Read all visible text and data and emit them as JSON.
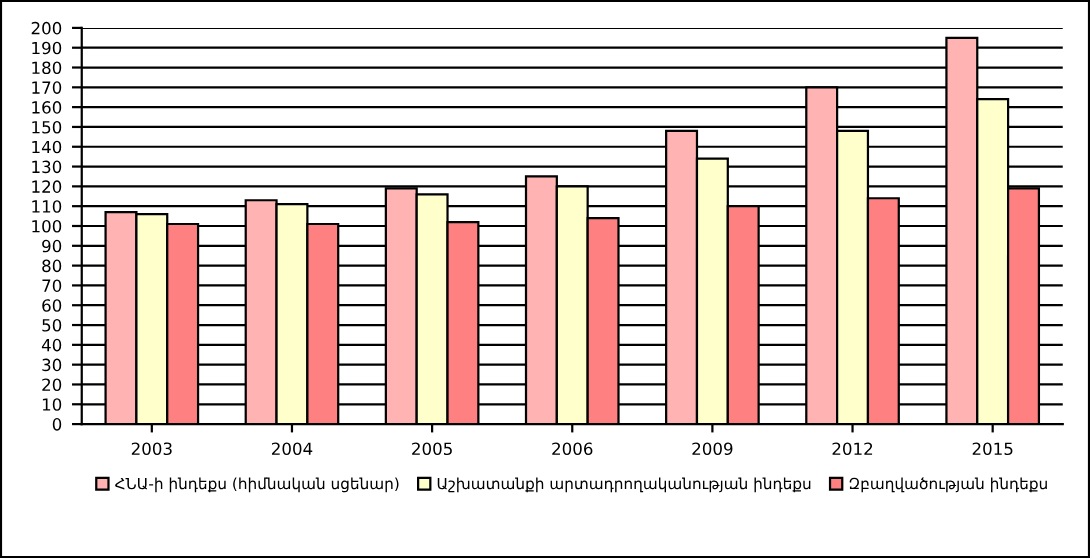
{
  "chart_data": {
    "type": "bar",
    "categories": [
      "2003",
      "2004",
      "2005",
      "2006",
      "2009",
      "2012",
      "2015"
    ],
    "series": [
      {
        "name": "ՀՆԱ-ի ինդեքս (հիմնական սցենար)",
        "color": "#ffb3b3",
        "values": [
          107,
          113,
          119,
          125,
          148,
          170,
          195
        ]
      },
      {
        "name": "Աշխատանքի արտադրողականության ինդեքս",
        "color": "#ffffcc",
        "values": [
          106,
          111,
          116,
          120,
          134,
          148,
          164
        ]
      },
      {
        "name": "Զբաղվածության ինդեքս",
        "color": "#ff8080",
        "values": [
          101,
          101,
          102,
          104,
          110,
          114,
          119
        ]
      }
    ],
    "ylim": [
      0,
      200
    ],
    "yticks": [
      0,
      10,
      20,
      30,
      40,
      50,
      60,
      70,
      80,
      90,
      100,
      110,
      120,
      130,
      140,
      150,
      160,
      170,
      180,
      190,
      200
    ],
    "grid": "y",
    "legend": "bottom"
  }
}
